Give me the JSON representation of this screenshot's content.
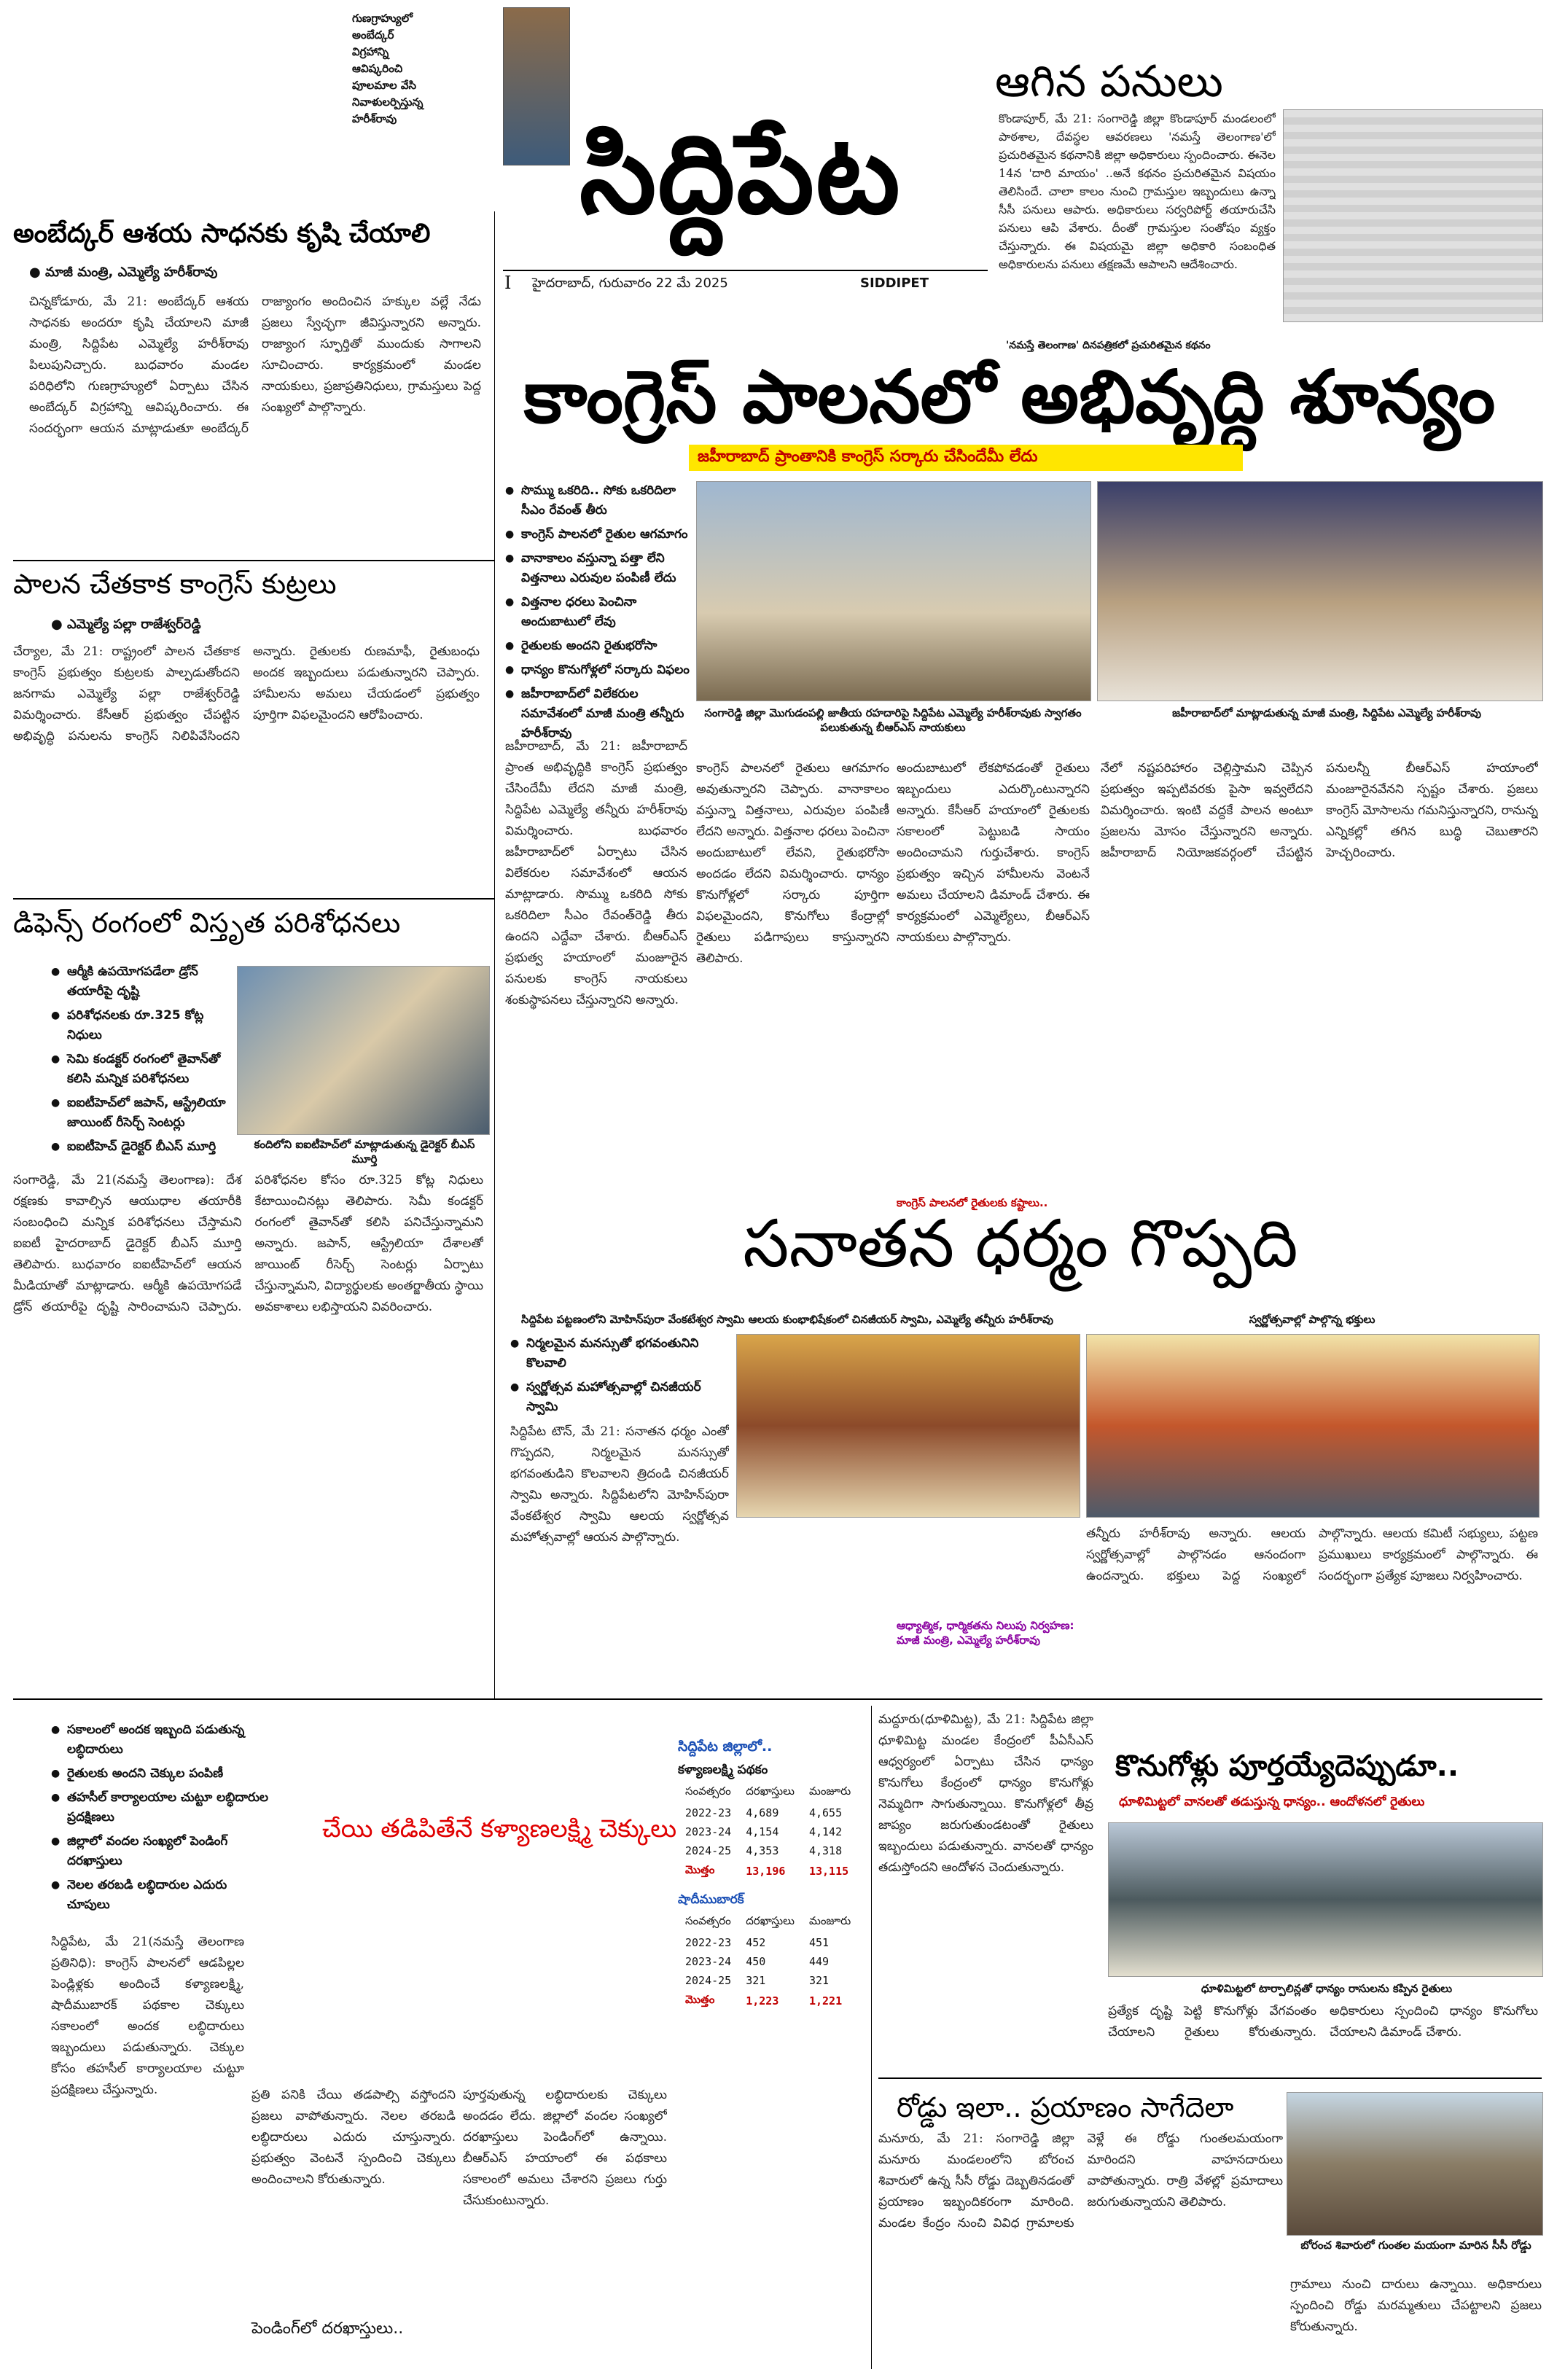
{
  "masthead": {
    "title": "సిద్దిపేట",
    "date_line": "హైదరాబాద్, గురువారం 22 మే 2025",
    "english_name": "SIDDIPET",
    "roman_numeral": "I",
    "ear_left": "గుణగ్రాహ్యులో\nఅంబేద్కర్\nవిగ్రహాన్ని\nఆవిష్కరించి\nపూలమాల వేసి\nనివాళులర్పిస్తున్న\nహరీశ్‌రావు"
  },
  "top_right": {
    "headline": "ఆగిన పనులు",
    "body": "కొండాపూర్, మే 21: సంగారెడ్డి జిల్లా కొండాపూర్ మండలంలో పాఠశాల, దేవస్థల ఆవరణలు 'నమస్తే తెలంగాణ'లో ప్రచురితమైన కథనానికి జిల్లా అధికారులు స్పందించారు. ఈనెల 14న 'దారి మాయం' ..అనే కథనం ప్రచురితమైన విషయం తెలిసిందే. చాలా కాలం నుంచి గ్రామస్తుల ఇబ్బందులు ఉన్నా సీసీ పనులు ఆపారు. అధికారులు సర్వరిపోర్ట్ తయారుచేసి పనులు ఆపి వేశారు. దీంతో గ్రామస్తుల సంతోషం వ్యక్తం చేస్తున్నారు. ఈ విషయమై జిల్లా అధికారి సంబంధిత అధికారులను పనులు తక్షణమే ఆపాలని ఆదేశించారు.",
    "footnote": "'నమస్తే తెలంగాణ' దినపత్రికలో ప్రచురితమైన కథనం"
  },
  "left_story1": {
    "headline": "అంబేద్కర్ ఆశయ సాధనకు కృషి చేయాలి",
    "byline": "మాజీ మంత్రి, ఎమ్మెల్యే హరీశ్‌రావు",
    "body": "చిన్నకోడూరు, మే 21: అంబేద్కర్ ఆశయ సాధనకు అందరూ కృషి చేయాలని మాజీ మంత్రి, సిద్దిపేట ఎమ్మెల్యే హరీశ్‌రావు పిలుపునిచ్చారు. బుధవారం మండల పరిధిలోని గుణగ్రాహ్యులో ఏర్పాటు చేసిన అంబేద్కర్ విగ్రహాన్ని ఆవిష్కరించారు. ఈ సందర్భంగా ఆయన మాట్లాడుతూ అంబేద్కర్ రాజ్యాంగం అందించిన హక్కుల వల్లే నేడు ప్రజలు స్వేచ్ఛగా జీవిస్తున్నారని అన్నారు. రాజ్యాంగ స్ఫూర్తితో ముందుకు సాగాలని సూచించారు. కార్యక్రమంలో మండల నాయకులు, ప్రజాప్రతినిధులు, గ్రామస్తులు పెద్ద సంఖ్యలో పాల్గొన్నారు."
  },
  "left_story2": {
    "headline": "పాలన చేతకాక కాంగ్రెస్ కుట్రలు",
    "byline": "ఎమ్మెల్యే పల్లా రాజేశ్వర్‌రెడ్డి",
    "body": "చేర్యాల, మే 21: రాష్ట్రంలో పాలన చేతకాక కాంగ్రెస్ ప్రభుత్వం కుట్రలకు పాల్పడుతోందని జనగామ ఎమ్మెల్యే పల్లా రాజేశ్వర్‌రెడ్డి విమర్శించారు. కేసీఆర్ ప్రభుత్వం చేపట్టిన అభివృద్ధి పనులను కాంగ్రెస్ నిలిపివేసిందని అన్నారు. రైతులకు రుణమాఫీ, రైతుబంధు అందక ఇబ్బందులు పడుతున్నారని చెప్పారు. హామీలను అమలు చేయడంలో ప్రభుత్వం పూర్తిగా విఫలమైందని ఆరోపించారు."
  },
  "left_story3": {
    "headline": "డిఫెన్స్ రంగంలో విస్తృత పరిశోధనలు",
    "bullets": [
      "ఆర్మీకి ఉపయోగపడేలా డ్రోన్ తయారీపై దృష్టి",
      "పరిశోధనలకు రూ.325 కోట్ల నిధులు",
      "సెమి కండక్టర్ రంగంలో తైవాన్‌తో కలిసి మన్నిక పరిశోధనలు",
      "ఐఐటీహెచ్‌లో జపాన్, ఆస్ట్రేలియా జాయింట్ రీసెర్చ్ సెంటర్లు",
      "ఐఐటీహెచ్ డైరెక్టర్ బీఎస్ మూర్తి"
    ],
    "photo_caption": "కందిలోని ఐఐటీహెచ్‌లో మాట్లాడుతున్న డైరెక్టర్ బీఎస్ మూర్తి",
    "body": "సంగారెడ్డి, మే 21(నమస్తే తెలంగాణ): దేశ రక్షణకు కావాల్సిన ఆయుధాల తయారీకి సంబంధించి మన్నిక పరిశోధనలు చేస్తామని ఐఐటీ హైదరాబాద్ డైరెక్టర్ బీఎస్ మూర్తి తెలిపారు. బుధవారం ఐఐటీహెచ్‌లో ఆయన మీడియాతో మాట్లాడారు. ఆర్మీకి ఉపయోగపడే డ్రోన్ తయారీపై దృష్టి సారించామని చెప్పారు. పరిశోధనల కోసం రూ.325 కోట్ల నిధులు కేటాయించినట్లు తెలిపారు. సెమీ కండక్టర్ రంగంలో తైవాన్‌తో కలిసి పనిచేస్తున్నామని అన్నారు. జపాన్, ఆస్ట్రేలియా దేశాలతో జాయింట్ రీసెర్చ్ సెంటర్లు ఏర్పాటు చేస్తున్నామని, విద్యార్థులకు అంతర్జాతీయ స్థాయి అవకాశాలు లభిస్తాయని వివరించారు."
  },
  "main_headline": {
    "headline": "కాంగ్రెస్ పాలనలో అభివృద్ధి శూన్యం",
    "subhead": "జహీరాబాద్ ప్రాంతానికి కాంగ్రెస్ సర్కారు చేసిందేమీ లేదు",
    "bullets": [
      "సొమ్ము ఒకరిది.. సోకు ఒకరిదిలా సీఎం రేవంత్ తీరు",
      "కాంగ్రెస్ పాలనలో రైతుల ఆగమాగం",
      "వానాకాలం వస్తున్నా పత్తా లేని విత్తనాలు ఎరువుల పంపిణీ లేదు",
      "విత్తనాల ధరలు పెంచినా అందుబాటులో లేవు",
      "రైతులకు అందని రైతుభరోసా",
      "ధాన్యం కొనుగోళ్లలో సర్కారు విఫలం",
      "జహీరాబాద్‌లో విలేకరుల సమావేశంలో మాజీ మంత్రి తన్నీరు హరీశ్‌రావు"
    ],
    "photo_caption1": "సంగారెడ్డి జిల్లా మొగుడంపల్లి జాతీయ రహదారిపై సిద్దిపేట ఎమ్మెల్యే హరీశ్‌రావుకు స్వాగతం పలుకుతున్న బీఆర్ఎస్ నాయకులు",
    "photo_caption2": "జహీరాబాద్‌లో మాట్లాడుతున్న మాజీ మంత్రి, సిద్దిపేట ఎమ్మెల్యే హరీశ్‌రావు",
    "inline_subhead": "కాంగ్రెస్ పాలనలో రైతులకు కష్టాలు..",
    "body1": "జహీరాబాద్, మే 21: జహీరాబాద్ ప్రాంత అభివృద్ధికి కాంగ్రెస్ ప్రభుత్వం చేసిందేమీ లేదని మాజీ మంత్రి, సిద్దిపేట ఎమ్మెల్యే తన్నీరు హరీశ్‌రావు విమర్శించారు. బుధవారం జహీరాబాద్‌లో ఏర్పాటు చేసిన విలేకరుల సమావేశంలో ఆయన మాట్లాడారు. సొమ్ము ఒకరిది సోకు ఒకరిదిలా సీఎం రేవంత్‌రెడ్డి తీరు ఉందని ఎద్దేవా చేశారు. బీఆర్ఎస్ ప్రభుత్వ హయాంలో మంజూరైన పనులకు కాంగ్రెస్ నాయకులు శంకుస్థాపనలు చేస్తున్నారని అన్నారు.",
    "body2": "కాంగ్రెస్ పాలనలో రైతులు ఆగమాగం అవుతున్నారని చెప్పారు. వానాకాలం వస్తున్నా విత్తనాలు, ఎరువుల పంపిణీ లేదని అన్నారు. విత్తనాల ధరలు పెంచినా అందుబాటులో లేవని, రైతుభరోసా అందడం లేదని విమర్శించారు. ధాన్యం కొనుగోళ్లలో సర్కారు పూర్తిగా విఫలమైందని, కొనుగోలు కేంద్రాల్లో రైతులు పడిగాపులు కాస్తున్నారని తెలిపారు.",
    "body3": "అందుబాటులో లేకపోవడంతో రైతులు ఇబ్బందులు ఎదుర్కొంటున్నారని అన్నారు. కేసీఆర్ హయాంలో రైతులకు సకాలంలో పెట్టుబడి సాయం అందించామని గుర్తుచేశారు. కాంగ్రెస్ ప్రభుత్వం ఇచ్చిన హామీలను వెంటనే అమలు చేయాలని డిమాండ్ చేశారు. ఈ కార్యక్రమంలో ఎమ్మెల్యేలు, బీఆర్ఎస్ నాయకులు పాల్గొన్నారు.",
    "body4": "నేలో నష్టపరిహారం చెల్లిస్తామని చెప్పిన ప్రభుత్వం ఇప్పటివరకు పైసా ఇవ్వలేదని విమర్శించారు. ఇంటి వద్దకే పాలన అంటూ ప్రజలను మోసం చేస్తున్నారని అన్నారు. జహీరాబాద్ నియోజకవర్గంలో చేపట్టిన పనులన్నీ బీఆర్ఎస్ హయాంలో మంజూరైనవేనని స్పష్టం చేశారు. ప్రజలు కాంగ్రెస్ మోసాలను గమనిస్తున్నారని, రానున్న ఎన్నికల్లో తగిన బుద్ధి చెబుతారని హెచ్చరించారు."
  },
  "sanatana": {
    "headline": "సనాతన ధర్మం గొప్పది",
    "photo_caption1": "సిద్దిపేట పట్టణంలోని మోహిన్‌పురా వేంకటేశ్వర స్వామి ఆలయ కుంభాభిషేకంలో చినజీయర్ స్వామి, ఎమ్మెల్యే తన్నీరు హరీశ్‌రావు",
    "photo_caption2": "స్వర్ణోత్సవాల్లో పాల్గొన్న భక్తులు",
    "bullets": [
      "నిర్మలమైన మనస్సుతో భగవంతునిని కొలవాలి",
      "స్వర్ణోత్సవ మహోత్సవాల్లో చినజీయర్ స్వామి"
    ],
    "body1": "సిద్దిపేట టౌన్, మే 21: సనాతన ధర్మం ఎంతో గొప్పదని, నిర్మలమైన మనస్సుతో భగవంతుడిని కొలవాలని త్రిదండి చినజీయర్ స్వామి అన్నారు. సిద్దిపేటలోని మోహిన్‌పురా వేంకటేశ్వర స్వామి ఆలయ స్వర్ణోత్సవ మహోత్సవాల్లో ఆయన పాల్గొన్నారు.",
    "highlight": "ఆధ్యాత్మిక, ధార్మికతను నిలుపు నిర్వహణ: మాజీ మంత్రి, ఎమ్మెల్యే హరీశ్‌రావు",
    "body2": "తన్నీరు హరీశ్‌రావు అన్నారు. ఆలయ స్వర్ణోత్సవాల్లో పాల్గొనడం ఆనందంగా ఉందన్నారు. భక్తులు పెద్ద సంఖ్యలో పాల్గొన్నారు. ఆలయ కమిటీ సభ్యులు, పట్టణ ప్రముఖులు కార్యక్రమంలో పాల్గొన్నారు. ఈ సందర్భంగా ప్రత్యేక పూజలు నిర్వహించారు."
  },
  "kalyana": {
    "bullets": [
      "సకాలంలో అందక ఇబ్బంది పడుతున్న లబ్ధిదారులు",
      "రైతులకు అందని చెక్కుల పంపిణీ",
      "తహసీల్ కార్యాలయాల చుట్టూ లబ్ధిదారుల ప్రదక్షిణలు",
      "జిల్లాలో వందల సంఖ్యలో పెండింగ్ దరఖాస్తులు",
      "నెలల తరబడి లబ్ధిదారుల ఎదురు చూపులు"
    ],
    "headline": "చేయి తడిపితేనే కళ్యాణలక్ష్మి చెక్కులు",
    "subhead_bottom": "పెండింగ్‌లో దరఖాస్తులు..",
    "body1": "సిద్దిపేట, మే 21(నమస్తే తెలంగాణ ప్రతినిధి): కాంగ్రెస్ పాలనలో ఆడపిల్లల పెండ్లిళ్లకు అందించే కళ్యాణలక్ష్మి, షాదీముబారక్ పథకాల చెక్కులు సకాలంలో అందక లబ్ధిదారులు ఇబ్బందులు పడుతున్నారు. చెక్కుల కోసం తహసీల్ కార్యాలయాల చుట్టూ ప్రదక్షిణలు చేస్తున్నారు.",
    "body2": "ప్రతి పనికి చేయి తడపాల్సి వస్తోందని ప్రజలు వాపోతున్నారు. నెలల తరబడి లబ్ధిదారులు ఎదురు చూస్తున్నారు. ప్రభుత్వం వెంటనే స్పందించి చెక్కులు అందించాలని కోరుతున్నారు.",
    "body3": "పూర్తవుతున్న లబ్ధిదారులకు చెక్కులు అందడం లేదు. జిల్లాలో వందల సంఖ్యలో దరఖాస్తులు పెండింగ్‌లో ఉన్నాయి. బీఆర్ఎస్ హయాంలో ఈ పథకాలు సకాలంలో అమలు చేశారని ప్రజలు గుర్తు చేసుకుంటున్నారు.",
    "stats_title": "సిద్దిపేట జిల్లాలో..",
    "table1_title": "కళ్యాణలక్ష్మి పథకం",
    "table2_title": "షాదీముబారక్",
    "col_year": "సంవత్సరం",
    "col_applied": "దరఖాస్తులు",
    "col_sanctioned": "మంజూరు",
    "total_label": "మొత్తం",
    "table1": [
      [
        "2022-23",
        "4,689",
        "4,655"
      ],
      [
        "2023-24",
        "4,154",
        "4,142"
      ],
      [
        "2024-25",
        "4,353",
        "4,318"
      ]
    ],
    "table1_total": [
      "13,196",
      "13,115"
    ],
    "table2": [
      [
        "2022-23",
        "452",
        "451"
      ],
      [
        "2023-24",
        "450",
        "449"
      ],
      [
        "2024-25",
        "321",
        "321"
      ]
    ],
    "table2_total": [
      "1,223",
      "1,221"
    ]
  },
  "konugollu": {
    "headline": "కొనుగోళ్లు పూర్తయ్యేదెప్పుడూ..",
    "subhead": "ధూళిమిట్టలో వానలతో తడుస్తున్న ధాన్యం.. ఆందోళనలో రైతులు",
    "photo_caption": "ధూళిమిట్టలో టార్పాలిన్లతో ధాన్యం రాసులను కప్పిన రైతులు",
    "body1": "మద్దూరు(ధూళిమిట్ట), మే 21: సిద్దిపేట జిల్లా ధూళిమిట్ట మండల కేంద్రంలో పీఏసీఎస్ ఆధ్వర్యంలో ఏర్పాటు చేసిన ధాన్యం కొనుగోలు కేంద్రంలో ధాన్యం కొనుగోళ్లు నెమ్మదిగా సాగుతున్నాయి. కొనుగోళ్లలో తీవ్ర జాప్యం జరుగుతుండటంతో రైతులు ఇబ్బందులు పడుతున్నారు. వానలతో ధాన్యం తడుస్తోందని ఆందోళన చెందుతున్నారు.",
    "body2": "ప్రత్యేక దృష్టి పెట్టి కొనుగోళ్లు వేగవంతం చేయాలని రైతులు కోరుతున్నారు. అధికారులు స్పందించి ధాన్యం కొనుగోలు చేయాలని డిమాండ్ చేశారు."
  },
  "roddu": {
    "headline": "రోడ్డు ఇలా.. ప్రయాణం సాగేదెలా",
    "photo_caption": "బోరంచ శివారులో గుంతల మయంగా మారిన సీసీ రోడ్డు",
    "body1": "మనూరు, మే 21: సంగారెడ్డి జిల్లా మనూరు మండలంలోని బోరంచ శివారులో ఉన్న సీసీ రోడ్డు దెబ్బతినడంతో ప్రయాణం ఇబ్బందికరంగా మారింది. మండల కేంద్రం నుంచి వివిధ గ్రామాలకు వెళ్లే ఈ రోడ్డు గుంతలమయంగా మారిందని వాహనదారులు వాపోతున్నారు. రాత్రి వేళల్లో ప్రమాదాలు జరుగుతున్నాయని తెలిపారు.",
    "body2": "గ్రామాలు నుంచి దారులు ఉన్నాయి. అధికారులు స్పందించి రోడ్డు మరమ్మతులు చేపట్టాలని ప్రజలు కోరుతున్నారు."
  }
}
